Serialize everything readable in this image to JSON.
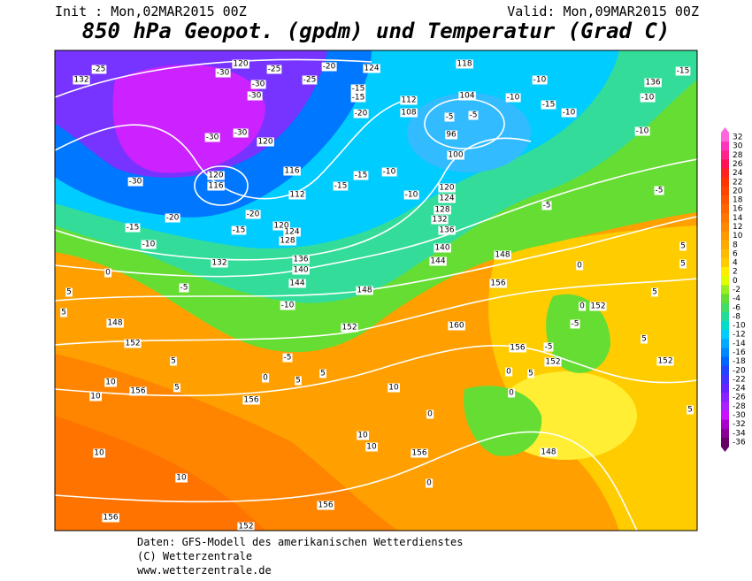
{
  "header": {
    "init": "Init : Mon,02MAR2015 00Z",
    "valid": "Valid: Mon,09MAR2015 00Z",
    "title": "850 hPa Geopot. (gpdm) und Temperatur (Grad C)"
  },
  "map": {
    "geopotential_labels": [
      132,
      120,
      124,
      118,
      112,
      108,
      104,
      96,
      100,
      120,
      120,
      116,
      116,
      112,
      120,
      124,
      128,
      132,
      136,
      140,
      144,
      148,
      152,
      156,
      156,
      152,
      148,
      156,
      160,
      152,
      152,
      156,
      152,
      148,
      156,
      156,
      156,
      152,
      136,
      120,
      124,
      128,
      132,
      136,
      140,
      144,
      148
    ],
    "temperature_labels": [
      -25,
      -30,
      -25,
      -30,
      -30,
      -25,
      -20,
      -15,
      -15,
      -20,
      -30,
      -30,
      -30,
      -20,
      -15,
      -10,
      -15,
      -20,
      -15,
      -15,
      -10,
      -10,
      -5,
      -5,
      -10,
      -10,
      -15,
      -10,
      -10,
      -10,
      -5,
      -5,
      -15,
      -5,
      -10,
      -5,
      0,
      0,
      5,
      5,
      5,
      5,
      5,
      5,
      0,
      -5,
      0,
      5,
      5,
      5,
      5,
      10,
      10,
      10,
      10,
      10,
      10,
      10,
      0,
      0,
      5,
      0,
      5,
      0,
      -5
    ],
    "colorbar": {
      "ticks": [
        32,
        30,
        28,
        26,
        24,
        22,
        20,
        18,
        16,
        14,
        12,
        10,
        8,
        6,
        4,
        2,
        0,
        -2,
        -4,
        -6,
        -8,
        -10,
        -12,
        -14,
        -16,
        -18,
        -20,
        -22,
        -24,
        -26,
        -28,
        -30,
        -32,
        -34,
        -36
      ],
      "colors": [
        "#ff66dd",
        "#ff33bb",
        "#ff2288",
        "#ff1155",
        "#ff2222",
        "#ff3300",
        "#ff4400",
        "#ff5500",
        "#ff6600",
        "#ff7700",
        "#ff8800",
        "#ff9900",
        "#ffaa00",
        "#ffbb00",
        "#ffcc00",
        "#ffee00",
        "#ddff00",
        "#99ee22",
        "#66dd33",
        "#44dd66",
        "#22dd99",
        "#00ddcc",
        "#00ccff",
        "#00aaff",
        "#0088ff",
        "#0066ff",
        "#2244ff",
        "#4433ff",
        "#6622ff",
        "#8822ff",
        "#aa22ff",
        "#cc11ff",
        "#aa00cc",
        "#880099",
        "#660066"
      ]
    }
  },
  "footer": {
    "source": "Daten: GFS-Modell des amerikanischen Wetterdienstes",
    "copyright": "(C) Wetterzentrale",
    "url": "www.wetterzentrale.de"
  }
}
